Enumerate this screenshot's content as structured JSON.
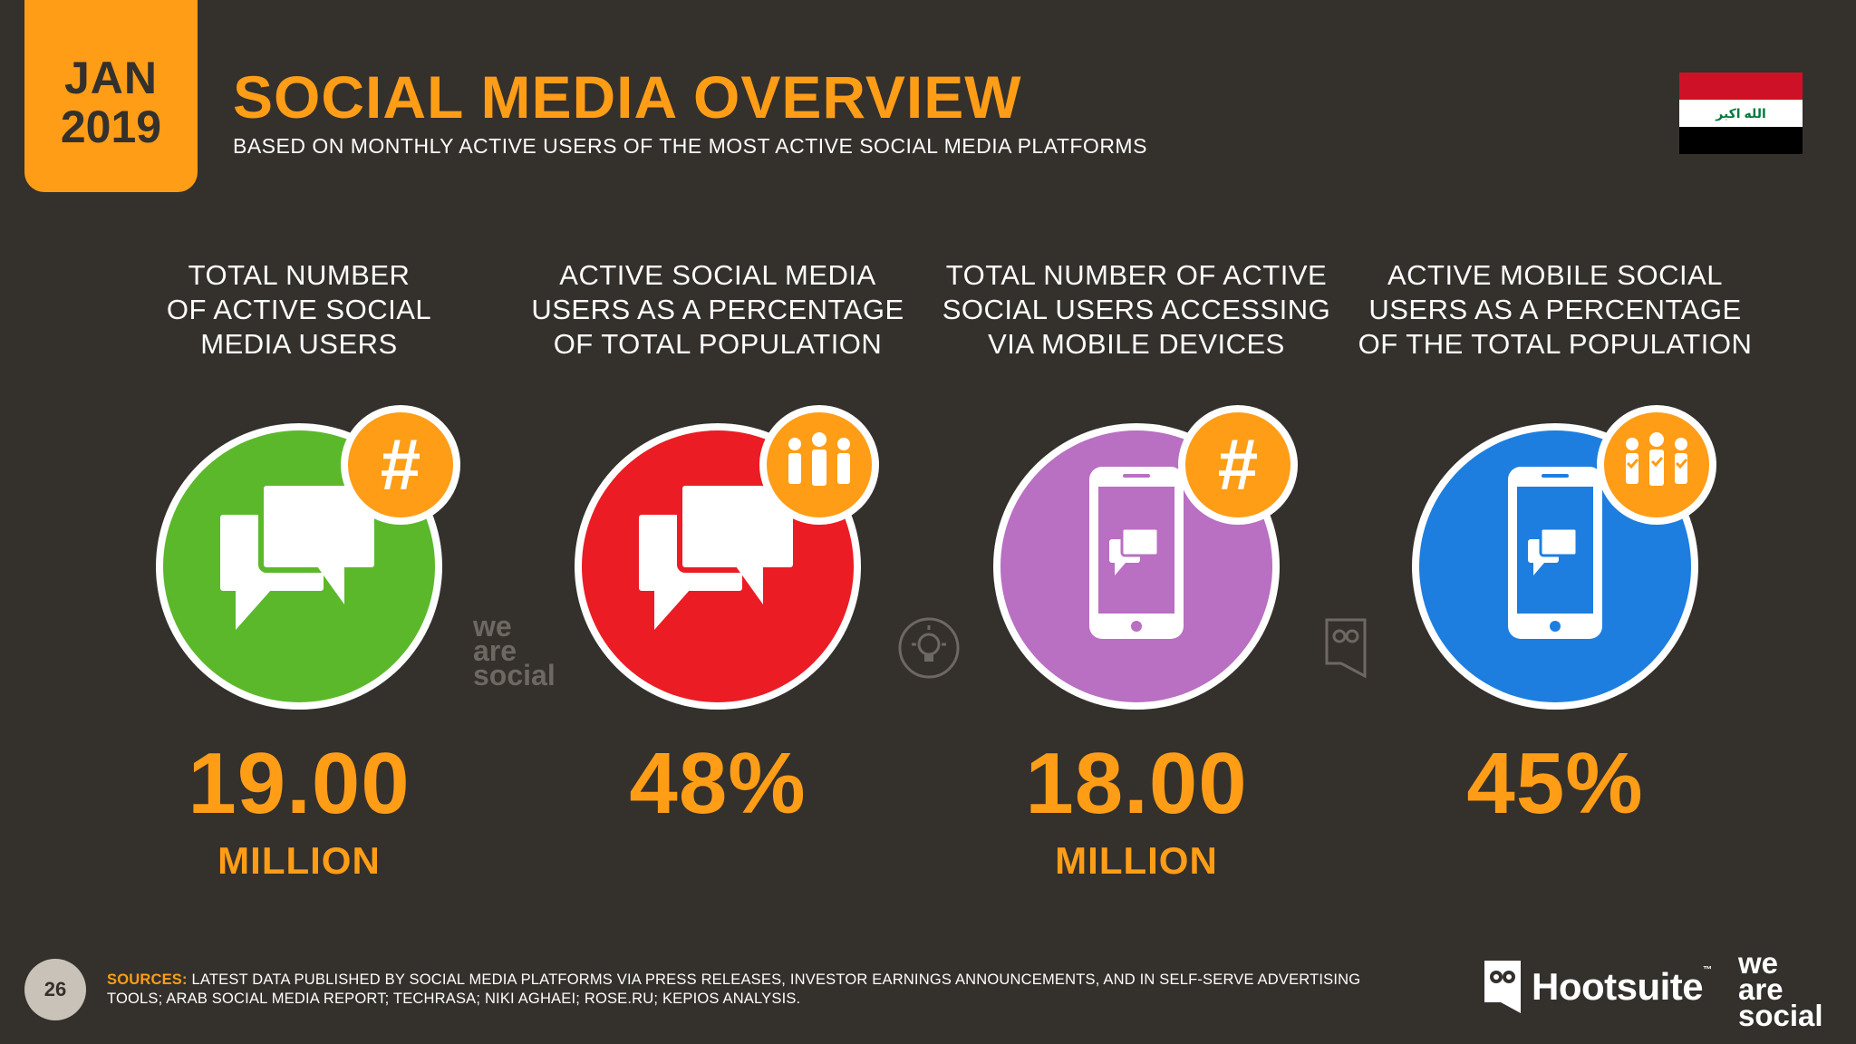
{
  "date_tab": {
    "month": "JAN",
    "year": "2019"
  },
  "header": {
    "title": "SOCIAL MEDIA OVERVIEW",
    "subtitle": "BASED ON MONTHLY ACTIVE USERS OF THE MOST ACTIVE SOCIAL MEDIA PLATFORMS"
  },
  "flag": {
    "country": "Iraq",
    "inscription": "الله اكبر",
    "colors": [
      "#ce1126",
      "#ffffff",
      "#000000"
    ]
  },
  "stats": [
    {
      "label": "TOTAL NUMBER\nOF ACTIVE SOCIAL\nMEDIA USERS",
      "value": "19.00",
      "unit": "MILLION",
      "circle_color": "#5cb82b",
      "badge_icon": "hashtag-icon",
      "main_icon": "chat-bubbles-icon"
    },
    {
      "label": "ACTIVE SOCIAL MEDIA\nUSERS AS A PERCENTAGE\nOF TOTAL POPULATION",
      "value": "48%",
      "unit": "",
      "circle_color": "#eb1c24",
      "badge_icon": "people-group-icon",
      "main_icon": "chat-bubbles-icon"
    },
    {
      "label": "TOTAL NUMBER OF ACTIVE\nSOCIAL USERS ACCESSING\nVIA MOBILE DEVICES",
      "value": "18.00",
      "unit": "MILLION",
      "circle_color": "#b96fc2",
      "badge_icon": "hashtag-icon",
      "main_icon": "mobile-chat-icon"
    },
    {
      "label": "ACTIVE MOBILE SOCIAL\nUSERS AS A PERCENTAGE\nOF THE TOTAL POPULATION",
      "value": "45%",
      "unit": "",
      "circle_color": "#1d7ee0",
      "badge_icon": "people-check-icon",
      "main_icon": "mobile-chat-icon"
    }
  ],
  "watermark": {
    "line1": "we",
    "line2": "are",
    "line3": "social"
  },
  "footer": {
    "page_number": "26",
    "sources_lead": "SOURCES:",
    "sources_text": "LATEST DATA PUBLISHED BY SOCIAL MEDIA PLATFORMS VIA PRESS RELEASES, INVESTOR EARNINGS ANNOUNCEMENTS, AND IN SELF-SERVE ADVERTISING TOOLS; ARAB SOCIAL MEDIA REPORT; TECHRASA; NIKI AGHAEI; ROSE.RU; KEPIOS ANALYSIS.",
    "hootsuite": "Hootsuite",
    "hootsuite_tm": "™",
    "was_line1": "we",
    "was_line2": "are",
    "was_line3": "social"
  },
  "colors": {
    "background": "#34302c",
    "accent": "#ff9d17"
  }
}
